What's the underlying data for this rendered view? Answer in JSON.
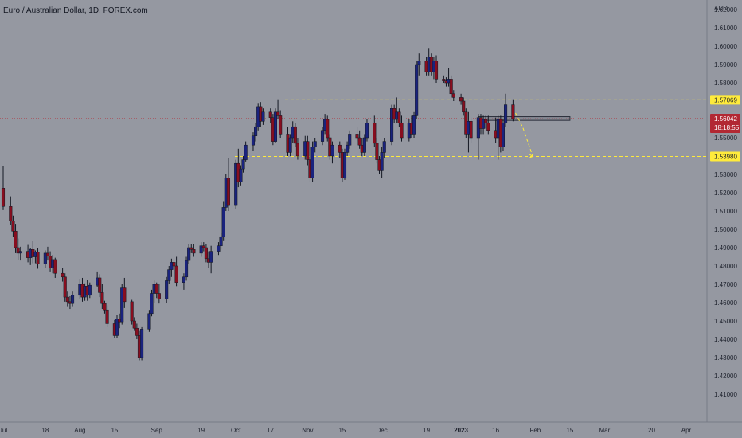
{
  "chart_data": {
    "type": "candlestick",
    "title": "Euro / Australian Dollar, 1D, FOREX.com",
    "currency": "AUD",
    "ylim": [
      1.4,
      1.62
    ],
    "y_ticks": [
      "1.62000",
      "1.61000",
      "1.60000",
      "1.59000",
      "1.58000",
      "1.57000",
      "1.56000",
      "1.55000",
      "1.54000",
      "1.53000",
      "1.52000",
      "1.51000",
      "1.50000",
      "1.49000",
      "1.48000",
      "1.47000",
      "1.46000",
      "1.45000",
      "1.44000",
      "1.43000",
      "1.42000",
      "1.41000"
    ],
    "x_ticks": [
      {
        "label": "Jul",
        "date": "2022-07-01"
      },
      {
        "label": "18",
        "date": "2022-07-18"
      },
      {
        "label": "Aug",
        "date": "2022-08-01"
      },
      {
        "label": "15",
        "date": "2022-08-15"
      },
      {
        "label": "Sep",
        "date": "2022-09-01"
      },
      {
        "label": "19",
        "date": "2022-09-19"
      },
      {
        "label": "Oct",
        "date": "2022-10-03"
      },
      {
        "label": "17",
        "date": "2022-10-17"
      },
      {
        "label": "Nov",
        "date": "2022-11-01"
      },
      {
        "label": "15",
        "date": "2022-11-15"
      },
      {
        "label": "Dec",
        "date": "2022-12-01"
      },
      {
        "label": "19",
        "date": "2022-12-19"
      },
      {
        "label": "2023",
        "date": "2023-01-02"
      },
      {
        "label": "16",
        "date": "2023-01-16"
      },
      {
        "label": "Feb",
        "date": "2023-02-01"
      },
      {
        "label": "15",
        "date": "2023-02-15"
      },
      {
        "label": "Mar",
        "date": "2023-03-01"
      },
      {
        "label": "20",
        "date": "2023-03-20"
      },
      {
        "label": "Apr",
        "date": "2023-04-03"
      }
    ],
    "levels": [
      {
        "value": 1.57069,
        "label": "1.57069",
        "style": "dashed",
        "color": "#ffeb3b"
      },
      {
        "value": 1.5398,
        "label": "1.53980",
        "style": "dashed",
        "color": "#ffeb3b"
      }
    ],
    "last_price": {
      "value": 1.56042,
      "label": "1.56042",
      "countdown": "18:18:55",
      "color": "#b22833"
    },
    "zone": {
      "x": [
        "2023-01-09",
        "2023-02-15"
      ],
      "y": [
        1.5595,
        1.5615
      ]
    },
    "projection": [
      [
        "2023-01-24",
        1.5635
      ],
      [
        "2023-01-27",
        1.5555
      ],
      [
        "2023-01-31",
        1.5398
      ]
    ],
    "candles": [
      [
        "2022-07-01",
        1.5225,
        1.5345,
        1.5105,
        1.5125
      ],
      [
        "2022-07-04",
        1.5125,
        1.518,
        1.5025,
        1.5045
      ],
      [
        "2022-07-05",
        1.5045,
        1.5075,
        1.496,
        1.499
      ],
      [
        "2022-07-06",
        1.499,
        1.503,
        1.487,
        1.49
      ],
      [
        "2022-07-07",
        1.49,
        1.495,
        1.4835,
        1.487
      ],
      [
        "2022-07-08",
        1.487,
        1.4905,
        1.483,
        1.488
      ],
      [
        "2022-07-11",
        1.488,
        1.4915,
        1.482,
        1.4845
      ],
      [
        "2022-07-12",
        1.4845,
        1.49,
        1.4805,
        1.489
      ],
      [
        "2022-07-13",
        1.489,
        1.4935,
        1.4815,
        1.485
      ],
      [
        "2022-07-14",
        1.485,
        1.4885,
        1.4815,
        1.4875
      ],
      [
        "2022-07-15",
        1.4875,
        1.49,
        1.4785,
        1.481
      ],
      [
        "2022-07-18",
        1.481,
        1.4885,
        1.479,
        1.487
      ],
      [
        "2022-07-19",
        1.487,
        1.4905,
        1.483,
        1.4855
      ],
      [
        "2022-07-20",
        1.4855,
        1.488,
        1.477,
        1.479
      ],
      [
        "2022-07-21",
        1.479,
        1.486,
        1.476,
        1.4835
      ],
      [
        "2022-07-22",
        1.4835,
        1.4845,
        1.4735,
        1.476
      ],
      [
        "2022-07-25",
        1.476,
        1.479,
        1.4715,
        1.474
      ],
      [
        "2022-07-26",
        1.474,
        1.476,
        1.4605,
        1.463
      ],
      [
        "2022-07-27",
        1.463,
        1.466,
        1.458,
        1.4605
      ],
      [
        "2022-07-28",
        1.4605,
        1.4635,
        1.4565,
        1.4595
      ],
      [
        "2022-07-29",
        1.4595,
        1.466,
        1.458,
        1.464
      ],
      [
        "2022-08-01",
        1.464,
        1.473,
        1.462,
        1.47
      ],
      [
        "2022-08-02",
        1.47,
        1.4735,
        1.4605,
        1.463
      ],
      [
        "2022-08-03",
        1.463,
        1.4705,
        1.461,
        1.469
      ],
      [
        "2022-08-04",
        1.469,
        1.4725,
        1.461,
        1.464
      ],
      [
        "2022-08-05",
        1.464,
        1.471,
        1.4625,
        1.4695
      ],
      [
        "2022-08-08",
        1.4695,
        1.477,
        1.4685,
        1.4735
      ],
      [
        "2022-08-09",
        1.4735,
        1.4755,
        1.463,
        1.4655
      ],
      [
        "2022-08-10",
        1.4655,
        1.47,
        1.4565,
        1.4595
      ],
      [
        "2022-08-11",
        1.4595,
        1.461,
        1.454,
        1.456
      ],
      [
        "2022-08-12",
        1.456,
        1.4585,
        1.4465,
        1.4485
      ],
      [
        "2022-08-15",
        1.4485,
        1.4505,
        1.4405,
        1.442
      ],
      [
        "2022-08-16",
        1.442,
        1.4535,
        1.4405,
        1.451
      ],
      [
        "2022-08-17",
        1.451,
        1.454,
        1.446,
        1.4495
      ],
      [
        "2022-08-18",
        1.4495,
        1.47,
        1.448,
        1.468
      ],
      [
        "2022-08-19",
        1.468,
        1.4735,
        1.457,
        1.4605
      ],
      [
        "2022-08-22",
        1.4605,
        1.4615,
        1.448,
        1.45
      ],
      [
        "2022-08-23",
        1.45,
        1.452,
        1.4445,
        1.446
      ],
      [
        "2022-08-24",
        1.446,
        1.4485,
        1.44,
        1.442
      ],
      [
        "2022-08-25",
        1.442,
        1.4445,
        1.4285,
        1.43
      ],
      [
        "2022-08-26",
        1.43,
        1.447,
        1.4285,
        1.4455
      ],
      [
        "2022-08-29",
        1.4455,
        1.456,
        1.444,
        1.454
      ],
      [
        "2022-08-30",
        1.454,
        1.467,
        1.4525,
        1.465
      ],
      [
        "2022-08-31",
        1.465,
        1.472,
        1.46,
        1.47
      ],
      [
        "2022-09-01",
        1.47,
        1.471,
        1.4625,
        1.465
      ],
      [
        "2022-09-02",
        1.465,
        1.47,
        1.4595,
        1.462
      ],
      [
        "2022-09-05",
        1.462,
        1.474,
        1.46,
        1.472
      ],
      [
        "2022-09-06",
        1.472,
        1.48,
        1.47,
        1.478
      ],
      [
        "2022-09-07",
        1.478,
        1.484,
        1.474,
        1.482
      ],
      [
        "2022-09-08",
        1.482,
        1.484,
        1.478,
        1.48
      ],
      [
        "2022-09-09",
        1.48,
        1.485,
        1.469,
        1.471
      ],
      [
        "2022-09-12",
        1.471,
        1.476,
        1.467,
        1.474
      ],
      [
        "2022-09-13",
        1.474,
        1.485,
        1.472,
        1.483
      ],
      [
        "2022-09-14",
        1.483,
        1.492,
        1.481,
        1.49
      ],
      [
        "2022-09-15",
        1.49,
        1.492,
        1.487,
        1.489
      ],
      [
        "2022-09-16",
        1.489,
        1.492,
        1.485,
        1.487
      ],
      [
        "2022-09-19",
        1.487,
        1.493,
        1.485,
        1.491
      ],
      [
        "2022-09-20",
        1.491,
        1.493,
        1.488,
        1.49
      ],
      [
        "2022-09-21",
        1.49,
        1.492,
        1.482,
        1.484
      ],
      [
        "2022-09-22",
        1.484,
        1.488,
        1.479,
        1.482
      ],
      [
        "2022-09-23",
        1.482,
        1.491,
        1.476,
        1.488
      ],
      [
        "2022-09-26",
        1.488,
        1.493,
        1.486,
        1.491
      ],
      [
        "2022-09-27",
        1.491,
        1.498,
        1.489,
        1.496
      ],
      [
        "2022-09-28",
        1.496,
        1.515,
        1.494,
        1.512
      ],
      [
        "2022-09-29",
        1.512,
        1.53,
        1.51,
        1.528
      ],
      [
        "2022-09-30",
        1.528,
        1.539,
        1.51,
        1.513
      ],
      [
        "2022-10-03",
        1.513,
        1.538,
        1.511,
        1.536
      ],
      [
        "2022-10-04",
        1.536,
        1.544,
        1.523,
        1.526
      ],
      [
        "2022-10-05",
        1.526,
        1.535,
        1.524,
        1.533
      ],
      [
        "2022-10-06",
        1.533,
        1.54,
        1.531,
        1.538
      ],
      [
        "2022-10-07",
        1.538,
        1.548,
        1.537,
        1.546
      ],
      [
        "2022-10-10",
        1.546,
        1.553,
        1.543,
        1.551
      ],
      [
        "2022-10-11",
        1.551,
        1.558,
        1.548,
        1.556
      ],
      [
        "2022-10-12",
        1.556,
        1.569,
        1.554,
        1.567
      ],
      [
        "2022-10-13",
        1.567,
        1.5695,
        1.556,
        1.559
      ],
      [
        "2022-10-14",
        1.559,
        1.566,
        1.557,
        1.564
      ],
      [
        "2022-10-17",
        1.564,
        1.566,
        1.558,
        1.561
      ],
      [
        "2022-10-18",
        1.561,
        1.563,
        1.546,
        1.548
      ],
      [
        "2022-10-19",
        1.548,
        1.566,
        1.547,
        1.564
      ],
      [
        "2022-10-20",
        1.564,
        1.571,
        1.56,
        1.562
      ],
      [
        "2022-10-21",
        1.562,
        1.565,
        1.55,
        1.552
      ],
      [
        "2022-10-24",
        1.552,
        1.556,
        1.54,
        1.542
      ],
      [
        "2022-10-25",
        1.542,
        1.552,
        1.54,
        1.55
      ],
      [
        "2022-10-26",
        1.55,
        1.559,
        1.547,
        1.556
      ],
      [
        "2022-10-27",
        1.556,
        1.558,
        1.545,
        1.547
      ],
      [
        "2022-10-28",
        1.547,
        1.55,
        1.538,
        1.54
      ],
      [
        "2022-10-31",
        1.54,
        1.551,
        1.538,
        1.548
      ],
      [
        "2022-11-01",
        1.548,
        1.551,
        1.535,
        1.538
      ],
      [
        "2022-11-02",
        1.538,
        1.54,
        1.526,
        1.528
      ],
      [
        "2022-11-03",
        1.528,
        1.548,
        1.526,
        1.545
      ],
      [
        "2022-11-04",
        1.545,
        1.55,
        1.542,
        1.548
      ],
      [
        "2022-11-07",
        1.548,
        1.556,
        1.546,
        1.554
      ],
      [
        "2022-11-08",
        1.554,
        1.563,
        1.552,
        1.56
      ],
      [
        "2022-11-09",
        1.56,
        1.562,
        1.548,
        1.55
      ],
      [
        "2022-11-10",
        1.55,
        1.552,
        1.538,
        1.54
      ],
      [
        "2022-11-11",
        1.54,
        1.548,
        1.536,
        1.546
      ],
      [
        "2022-11-14",
        1.546,
        1.548,
        1.539,
        1.542
      ],
      [
        "2022-11-15",
        1.542,
        1.544,
        1.526,
        1.528
      ],
      [
        "2022-11-16",
        1.528,
        1.544,
        1.527,
        1.542
      ],
      [
        "2022-11-17",
        1.542,
        1.548,
        1.54,
        1.546
      ],
      [
        "2022-11-18",
        1.546,
        1.554,
        1.544,
        1.552
      ],
      [
        "2022-11-21",
        1.552,
        1.556,
        1.548,
        1.55
      ],
      [
        "2022-11-22",
        1.55,
        1.554,
        1.544,
        1.546
      ],
      [
        "2022-11-23",
        1.546,
        1.55,
        1.54,
        1.542
      ],
      [
        "2022-11-24",
        1.542,
        1.552,
        1.54,
        1.55
      ],
      [
        "2022-11-25",
        1.55,
        1.56,
        1.548,
        1.558
      ],
      [
        "2022-11-28",
        1.558,
        1.562,
        1.545,
        1.547
      ],
      [
        "2022-11-29",
        1.547,
        1.55,
        1.536,
        1.538
      ],
      [
        "2022-11-30",
        1.538,
        1.54,
        1.53,
        1.532
      ],
      [
        "2022-12-01",
        1.532,
        1.545,
        1.528,
        1.542
      ],
      [
        "2022-12-02",
        1.542,
        1.55,
        1.539,
        1.548
      ],
      [
        "2022-12-05",
        1.548,
        1.568,
        1.546,
        1.566
      ],
      [
        "2022-12-06",
        1.566,
        1.568,
        1.558,
        1.56
      ],
      [
        "2022-12-07",
        1.56,
        1.572,
        1.558,
        1.564
      ],
      [
        "2022-12-08",
        1.564,
        1.566,
        1.556,
        1.558
      ],
      [
        "2022-12-09",
        1.558,
        1.562,
        1.548,
        1.55
      ],
      [
        "2022-12-12",
        1.55,
        1.56,
        1.548,
        1.558
      ],
      [
        "2022-12-13",
        1.558,
        1.562,
        1.55,
        1.552
      ],
      [
        "2022-12-14",
        1.552,
        1.564,
        1.55,
        1.562
      ],
      [
        "2022-12-15",
        1.562,
        1.592,
        1.56,
        1.59
      ],
      [
        "2022-12-16",
        1.59,
        1.596,
        1.584,
        1.592
      ],
      [
        "2022-12-19",
        1.592,
        1.594,
        1.584,
        1.586
      ],
      [
        "2022-12-20",
        1.586,
        1.599,
        1.584,
        1.594
      ],
      [
        "2022-12-21",
        1.594,
        1.596,
        1.584,
        1.586
      ],
      [
        "2022-12-22",
        1.586,
        1.594,
        1.582,
        1.592
      ],
      [
        "2022-12-23",
        1.592,
        1.595,
        1.58,
        1.582
      ],
      [
        "2022-12-26",
        1.582,
        1.584,
        1.58,
        1.581
      ],
      [
        "2022-12-27",
        1.581,
        1.583,
        1.578,
        1.58
      ],
      [
        "2022-12-28",
        1.58,
        1.588,
        1.578,
        1.582
      ],
      [
        "2022-12-29",
        1.582,
        1.584,
        1.572,
        1.574
      ],
      [
        "2022-12-30",
        1.574,
        1.576,
        1.57,
        1.572
      ],
      [
        "2023-01-02",
        1.572,
        1.574,
        1.568,
        1.57
      ],
      [
        "2023-01-03",
        1.57,
        1.572,
        1.562,
        1.564
      ],
      [
        "2023-01-04",
        1.564,
        1.566,
        1.55,
        1.552
      ],
      [
        "2023-01-05",
        1.552,
        1.564,
        1.542,
        1.559
      ],
      [
        "2023-01-06",
        1.559,
        1.561,
        1.547,
        1.55
      ],
      [
        "2023-01-09",
        1.55,
        1.563,
        1.538,
        1.561
      ],
      [
        "2023-01-10",
        1.561,
        1.563,
        1.552,
        1.555
      ],
      [
        "2023-01-11",
        1.555,
        1.562,
        1.552,
        1.56
      ],
      [
        "2023-01-12",
        1.56,
        1.562,
        1.555,
        1.558
      ],
      [
        "2023-01-13",
        1.558,
        1.562,
        1.552,
        1.554
      ],
      [
        "2023-01-16",
        1.554,
        1.561,
        1.547,
        1.55
      ],
      [
        "2023-01-17",
        1.55,
        1.562,
        1.538,
        1.56
      ],
      [
        "2023-01-18",
        1.56,
        1.562,
        1.542,
        1.545
      ],
      [
        "2023-01-19",
        1.545,
        1.56,
        1.543,
        1.558
      ],
      [
        "2023-01-20",
        1.558,
        1.574,
        1.556,
        1.568
      ],
      [
        "2023-01-23",
        1.568,
        1.571,
        1.559,
        1.5604
      ]
    ]
  }
}
